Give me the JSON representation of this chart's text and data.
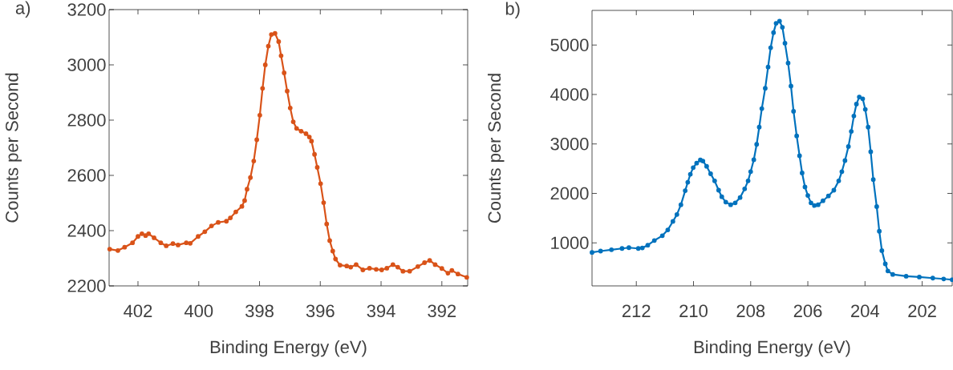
{
  "chart_data": [
    {
      "type": "line",
      "title": "a)",
      "xlabel": "Binding Energy (eV)",
      "ylabel": "Counts per Second",
      "color": "#d95319",
      "marker": "circle",
      "line_style": "solid",
      "xlim": [
        402.95,
        391.15
      ],
      "ylim": [
        2200,
        3200
      ],
      "xticks": [
        402,
        400,
        398,
        396,
        394,
        392
      ],
      "yticks": [
        2200,
        2400,
        2600,
        2800,
        3000,
        3200
      ],
      "x": [
        402.93,
        402.66,
        402.44,
        402.18,
        402.0,
        401.87,
        401.75,
        401.65,
        401.47,
        401.25,
        401.07,
        400.85,
        400.68,
        400.41,
        400.28,
        400.02,
        399.8,
        399.58,
        399.36,
        399.09,
        398.96,
        398.78,
        398.58,
        398.49,
        398.41,
        398.3,
        398.19,
        398.09,
        397.99,
        397.9,
        397.81,
        397.71,
        397.61,
        397.49,
        397.37,
        397.29,
        397.19,
        397.09,
        396.99,
        396.89,
        396.78,
        396.63,
        396.47,
        396.36,
        396.29,
        396.19,
        396.1,
        395.99,
        395.89,
        395.79,
        395.69,
        395.59,
        395.5,
        395.35,
        395.13,
        395.0,
        394.82,
        394.6,
        394.38,
        394.16,
        393.98,
        393.81,
        393.61,
        393.45,
        393.28,
        393.06,
        392.79,
        392.57,
        392.4,
        392.22,
        392.0,
        391.8,
        391.67,
        391.47,
        391.18
      ],
      "values": [
        2333,
        2328,
        2340,
        2356,
        2379,
        2389,
        2382,
        2389,
        2374,
        2356,
        2345,
        2353,
        2348,
        2356,
        2354,
        2379,
        2396,
        2417,
        2430,
        2434,
        2446,
        2468,
        2488,
        2509,
        2550,
        2592,
        2652,
        2729,
        2818,
        2915,
        3000,
        3068,
        3110,
        3114,
        3084,
        3033,
        2971,
        2905,
        2844,
        2794,
        2770,
        2760,
        2751,
        2739,
        2724,
        2676,
        2629,
        2570,
        2501,
        2424,
        2364,
        2326,
        2297,
        2275,
        2272,
        2268,
        2277,
        2258,
        2264,
        2260,
        2258,
        2264,
        2277,
        2268,
        2253,
        2253,
        2270,
        2284,
        2292,
        2277,
        2263,
        2246,
        2256,
        2243,
        2231
      ]
    },
    {
      "type": "line",
      "title": "b)",
      "xlabel": "Binding Energy (eV)",
      "ylabel": "Counts per Second",
      "color": "#0072bd",
      "marker": "circle",
      "line_style": "solid",
      "xlim": [
        213.55,
        200.95
      ],
      "ylim": [
        130,
        5700
      ],
      "xticks": [
        212,
        210,
        208,
        206,
        204,
        202
      ],
      "yticks": [
        1000,
        2000,
        3000,
        4000,
        5000
      ],
      "x": [
        213.55,
        213.25,
        212.87,
        212.5,
        212.26,
        211.93,
        211.79,
        211.6,
        211.37,
        211.09,
        210.9,
        210.72,
        210.58,
        210.44,
        210.29,
        210.2,
        210.11,
        210.01,
        209.89,
        209.76,
        209.67,
        209.54,
        209.4,
        209.26,
        209.12,
        209.01,
        208.87,
        208.7,
        208.54,
        208.37,
        208.21,
        208.09,
        208.0,
        207.89,
        207.79,
        207.7,
        207.61,
        207.49,
        207.39,
        207.3,
        207.2,
        207.11,
        206.99,
        206.89,
        206.8,
        206.69,
        206.59,
        206.5,
        206.39,
        206.29,
        206.2,
        206.1,
        206.0,
        205.89,
        205.77,
        205.64,
        205.47,
        205.28,
        205.09,
        204.92,
        204.81,
        204.7,
        204.58,
        204.48,
        204.39,
        204.3,
        204.2,
        204.08,
        203.99,
        203.89,
        203.8,
        203.71,
        203.59,
        203.5,
        203.41,
        203.29,
        203.2,
        203.03,
        202.56,
        202.1,
        201.63,
        201.25,
        200.95
      ],
      "values": [
        807,
        834,
        861,
        887,
        903,
        887,
        898,
        952,
        1048,
        1144,
        1262,
        1434,
        1573,
        1771,
        2055,
        2226,
        2387,
        2521,
        2612,
        2676,
        2655,
        2547,
        2397,
        2253,
        2065,
        1932,
        1824,
        1771,
        1808,
        1916,
        2092,
        2253,
        2440,
        2681,
        2992,
        3340,
        3715,
        4127,
        4556,
        4946,
        5252,
        5439,
        5482,
        5359,
        5037,
        4636,
        4170,
        3661,
        3163,
        2762,
        2413,
        2130,
        1958,
        1808,
        1755,
        1771,
        1851,
        1948,
        2065,
        2253,
        2440,
        2665,
        2949,
        3254,
        3565,
        3806,
        3950,
        3913,
        3699,
        3340,
        2842,
        2280,
        1733,
        1235,
        844,
        577,
        432,
        362,
        325,
        309,
        288,
        271,
        255
      ]
    }
  ]
}
